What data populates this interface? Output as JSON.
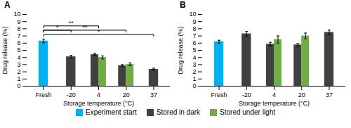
{
  "chart_data": [
    {
      "type": "bar",
      "title": "A",
      "categories": [
        "Fresh",
        "-20",
        "4",
        "20",
        "37"
      ],
      "series": [
        {
          "name": "Experiment start",
          "color": "#00b0f0",
          "values": [
            6.3,
            null,
            null,
            null,
            null
          ],
          "errors": [
            0.25,
            null,
            null,
            null,
            null
          ]
        },
        {
          "name": "Stored in dark",
          "color": "#404040",
          "values": [
            null,
            4.1,
            4.4,
            2.85,
            2.35
          ],
          "errors": [
            null,
            0.2,
            0.15,
            0.15,
            0.15
          ]
        },
        {
          "name": "Stored under light",
          "color": "#70ad47",
          "values": [
            null,
            null,
            4.0,
            3.05,
            null
          ],
          "errors": [
            null,
            null,
            0.2,
            0.2,
            null
          ]
        }
      ],
      "xlabel": "Storage temperature (°C)",
      "ylabel": "Drug release (%)",
      "ylim": [
        0,
        10
      ],
      "yticks": [
        0,
        1,
        2,
        3,
        4,
        5,
        6,
        7,
        8,
        9,
        10
      ],
      "annotations": [
        {
          "x1": "Fresh",
          "x2": "-20",
          "y": 7.8,
          "text": "*"
        },
        {
          "x1": "Fresh",
          "x2": "4",
          "y": 8.4,
          "text": "**"
        },
        {
          "x1": "Fresh",
          "x2": "20",
          "y": 7.8,
          "text": "**"
        },
        {
          "x1": "Fresh",
          "x2": "37",
          "y": 7.2,
          "text": "*"
        }
      ],
      "legend": "bottom"
    },
    {
      "type": "bar",
      "title": "B",
      "categories": [
        "Fresh",
        "-20",
        "4",
        "20",
        "37"
      ],
      "series": [
        {
          "name": "Experiment start",
          "color": "#00b0f0",
          "values": [
            6.2,
            null,
            null,
            null,
            null
          ],
          "errors": [
            0.2,
            null,
            null,
            null,
            null
          ]
        },
        {
          "name": "Stored in dark",
          "color": "#404040",
          "values": [
            null,
            7.3,
            5.85,
            5.75,
            7.5
          ],
          "errors": [
            null,
            0.35,
            0.25,
            0.2,
            0.3
          ]
        },
        {
          "name": "Stored under light",
          "color": "#70ad47",
          "values": [
            null,
            null,
            6.5,
            7.0,
            null
          ],
          "errors": [
            null,
            null,
            0.5,
            0.4,
            null
          ]
        }
      ],
      "xlabel": "Storage temperature (°C)",
      "ylabel": "Drug release (%)",
      "ylim": [
        0,
        10
      ],
      "yticks": [
        0,
        1,
        2,
        3,
        4,
        5,
        6,
        7,
        8,
        9,
        10
      ],
      "legend": "bottom"
    }
  ]
}
